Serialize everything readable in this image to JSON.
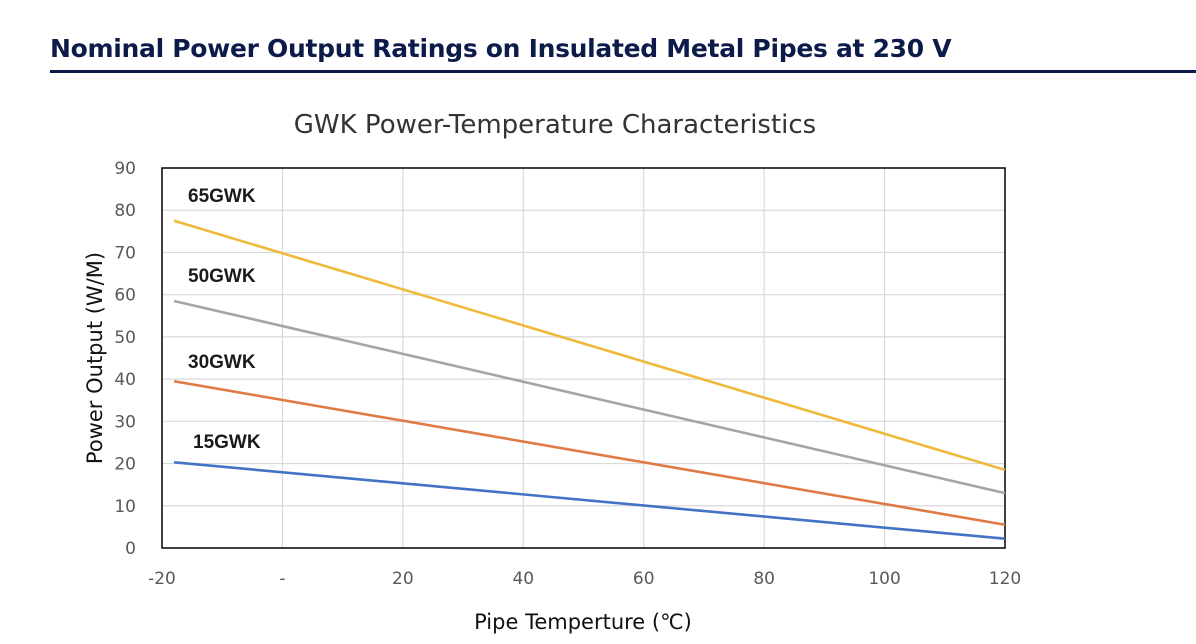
{
  "page": {
    "heading": "Nominal Power Output Ratings on Insulated Metal Pipes at 230 V"
  },
  "chart_data": {
    "type": "line",
    "title": "GWK Power-Temperature Characteristics",
    "xlabel": "Pipe Temperture (℃)",
    "ylabel": "Power Output (W/M)",
    "xlim": [
      -20,
      120
    ],
    "ylim": [
      0,
      90
    ],
    "x_ticks": [
      {
        "value": -20,
        "label": "-20"
      },
      {
        "value": 0,
        "label": "-"
      },
      {
        "value": 20,
        "label": "20"
      },
      {
        "value": 40,
        "label": "40"
      },
      {
        "value": 60,
        "label": "60"
      },
      {
        "value": 80,
        "label": "80"
      },
      {
        "value": 100,
        "label": "100"
      },
      {
        "value": 120,
        "label": "120"
      }
    ],
    "y_ticks": [
      0,
      10,
      20,
      30,
      40,
      50,
      60,
      70,
      80,
      90
    ],
    "grid": true,
    "series": [
      {
        "name": "65GWK",
        "color": "#f0b93b",
        "x": [
          -18,
          120
        ],
        "y": [
          77.5,
          18.5
        ]
      },
      {
        "name": "50GWK",
        "color": "#a5a5a5",
        "x": [
          -18,
          120
        ],
        "y": [
          58.5,
          13
        ]
      },
      {
        "name": "30GWK",
        "color": "#e07a45",
        "x": [
          -18,
          120
        ],
        "y": [
          39.5,
          5.5
        ]
      },
      {
        "name": "15GWK",
        "color": "#4472c4",
        "x": [
          -18,
          120
        ],
        "y": [
          20.3,
          2.2
        ]
      }
    ]
  }
}
